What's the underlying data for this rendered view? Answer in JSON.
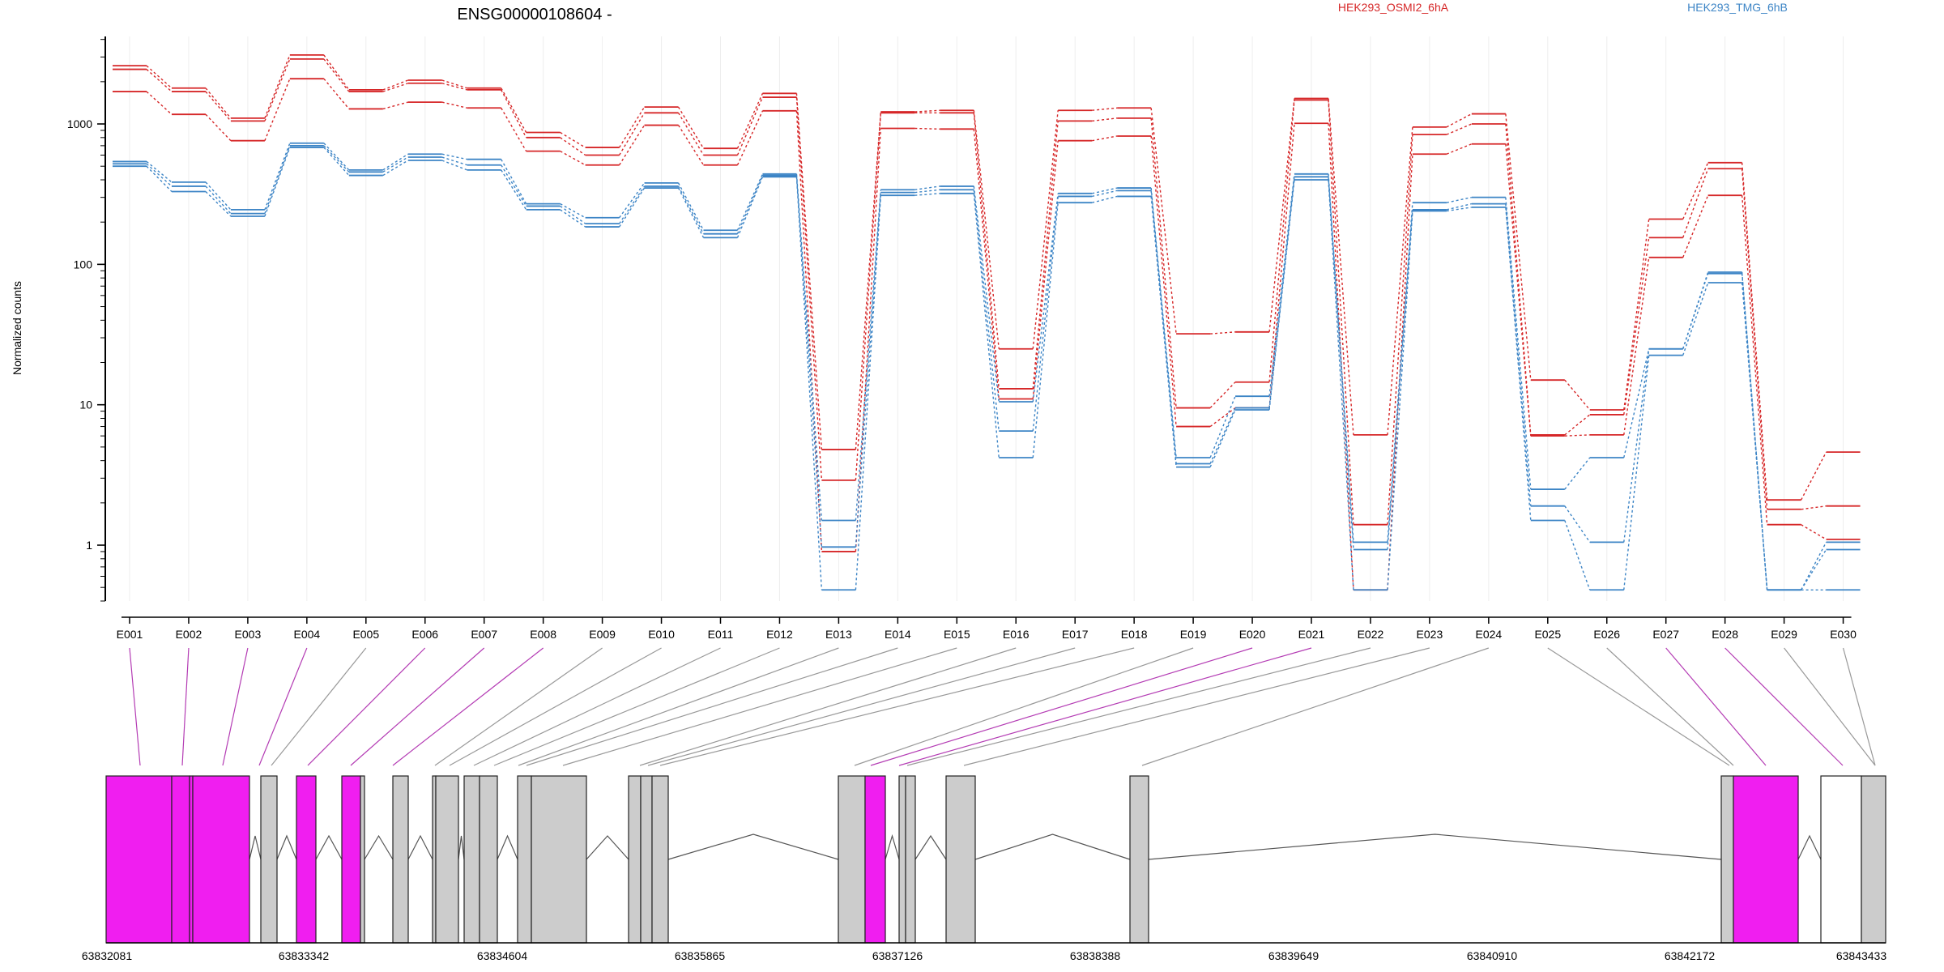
{
  "title": "ENSG00000108604 -",
  "colors": {
    "HEK293_OSMI2_6hA": "#d62728",
    "HEK293_TMG_6hB": "#3d85c6",
    "exon_highlight": "#f01ef0",
    "exon_default": "#cccccc",
    "connector_highlight": "#b43cb4",
    "connector_default": "#999999"
  },
  "chart_data": {
    "type": "line",
    "title": "ENSG00000108604 -",
    "ylabel": "Normalized counts",
    "yscale": "log",
    "ylim": [
      0.4,
      4200
    ],
    "yticks": [
      1,
      10,
      100,
      1000
    ],
    "ytick_labels": [
      "1",
      "10",
      "100",
      "1000"
    ],
    "categories": [
      "E001",
      "E002",
      "E003",
      "E004",
      "E005",
      "E006",
      "E007",
      "E008",
      "E009",
      "E010",
      "E011",
      "E012",
      "E013",
      "E014",
      "E015",
      "E016",
      "E017",
      "E018",
      "E019",
      "E020",
      "E021",
      "E022",
      "E023",
      "E024",
      "E025",
      "E026",
      "E027",
      "E028",
      "E029",
      "E030"
    ],
    "legend": [
      "HEK293_OSMI2_6hA",
      "HEK293_TMG_6hB"
    ],
    "series": [
      {
        "group": "HEK293_OSMI2_6hA",
        "values": [
          2600,
          1800,
          1100,
          3100,
          1750,
          2050,
          1800,
          870,
          680,
          1320,
          670,
          1650,
          4.8,
          1220,
          1250,
          25,
          1250,
          1300,
          32,
          33,
          1520,
          6.1,
          950,
          1180,
          15,
          9.2,
          210,
          530,
          2.1,
          4.6
        ]
      },
      {
        "group": "HEK293_OSMI2_6hA",
        "values": [
          2450,
          1700,
          1050,
          2900,
          1700,
          1950,
          1750,
          800,
          600,
          1200,
          600,
          1550,
          2.9,
          1200,
          1200,
          13,
          1050,
          1100,
          9.5,
          14.5,
          1480,
          1.4,
          840,
          1000,
          6.1,
          8.5,
          155,
          480,
          1.8,
          1.9
        ]
      },
      {
        "group": "HEK293_OSMI2_6hA",
        "values": [
          1700,
          1170,
          760,
          2100,
          1280,
          1430,
          1300,
          640,
          510,
          980,
          510,
          1240,
          0.9,
          930,
          920,
          11,
          760,
          820,
          7,
          9.5,
          1010,
          0.48,
          610,
          720,
          6,
          6.1,
          112,
          310,
          1.4,
          1.1
        ]
      },
      {
        "group": "HEK293_TMG_6hB",
        "values": [
          540,
          385,
          245,
          730,
          470,
          610,
          560,
          270,
          215,
          380,
          175,
          440,
          1.5,
          340,
          360,
          10.5,
          320,
          350,
          4.2,
          11.5,
          440,
          1.05,
          275,
          300,
          2.5,
          4.2,
          25,
          88,
          0.48,
          1.05
        ]
      },
      {
        "group": "HEK293_TMG_6hB",
        "values": [
          520,
          360,
          230,
          700,
          455,
          580,
          510,
          260,
          195,
          360,
          165,
          430,
          0.97,
          325,
          340,
          6.5,
          305,
          335,
          3.8,
          9.5,
          420,
          0.93,
          245,
          270,
          1.9,
          1.05,
          25,
          86,
          0.48,
          0.93
        ]
      },
      {
        "group": "HEK293_TMG_6hB",
        "values": [
          500,
          330,
          220,
          680,
          430,
          550,
          470,
          245,
          185,
          350,
          155,
          420,
          0.48,
          310,
          320,
          4.2,
          275,
          305,
          3.6,
          9.2,
          400,
          0.48,
          240,
          255,
          1.5,
          0.48,
          22.5,
          74,
          0.48,
          0.48
        ]
      }
    ]
  },
  "gene_model": {
    "coordinate_labels": [
      "63832081",
      "63833342",
      "63834604",
      "63835865",
      "63837126",
      "63838388",
      "63839649",
      "63840910",
      "63842172",
      "63843433"
    ],
    "exon_colors": [
      "magenta",
      "magenta",
      "magenta",
      "magenta",
      "grey",
      "magenta",
      "magenta",
      "magenta",
      "grey",
      "grey",
      "grey",
      "grey",
      "grey",
      "grey",
      "grey",
      "grey",
      "grey",
      "grey",
      "grey",
      "magenta",
      "magenta",
      "grey",
      "grey",
      "grey",
      "grey",
      "grey",
      "magenta",
      "magenta",
      "white",
      "grey"
    ]
  }
}
